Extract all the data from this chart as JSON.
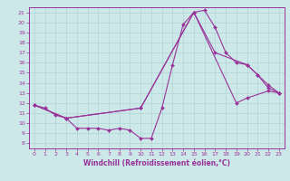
{
  "xlabel": "Windchill (Refroidissement éolien,°C)",
  "xlim": [
    -0.5,
    23.5
  ],
  "ylim": [
    7.5,
    21.5
  ],
  "xticks": [
    0,
    1,
    2,
    3,
    4,
    5,
    6,
    7,
    8,
    9,
    10,
    11,
    12,
    13,
    14,
    15,
    16,
    17,
    18,
    19,
    20,
    21,
    22,
    23
  ],
  "yticks": [
    8,
    9,
    10,
    11,
    12,
    13,
    14,
    15,
    16,
    17,
    18,
    19,
    20,
    21
  ],
  "bg_color": "#cce8e8",
  "grid_color": "#b0d4d4",
  "line_color": "#993399",
  "line1_x": [
    0,
    1,
    2,
    3,
    4,
    5,
    6,
    7,
    8,
    9,
    10,
    11,
    12,
    13,
    14,
    15,
    16,
    17,
    18,
    19,
    20,
    21,
    22,
    23
  ],
  "line1_y": [
    11.8,
    11.5,
    10.8,
    10.5,
    9.5,
    9.5,
    9.5,
    9.3,
    9.5,
    9.3,
    8.5,
    8.5,
    11.5,
    15.8,
    19.8,
    21.0,
    21.2,
    19.5,
    17.0,
    16.0,
    15.8,
    14.8,
    13.8,
    13.0
  ],
  "line2_x": [
    0,
    3,
    10,
    15,
    17,
    20,
    21,
    22,
    23
  ],
  "line2_y": [
    11.8,
    10.5,
    11.5,
    21.0,
    17.0,
    15.8,
    14.8,
    13.5,
    13.0
  ],
  "line3_x": [
    0,
    3,
    10,
    15,
    19,
    20,
    22,
    23
  ],
  "line3_y": [
    11.8,
    10.5,
    11.5,
    21.0,
    12.0,
    12.5,
    13.2,
    13.0
  ]
}
